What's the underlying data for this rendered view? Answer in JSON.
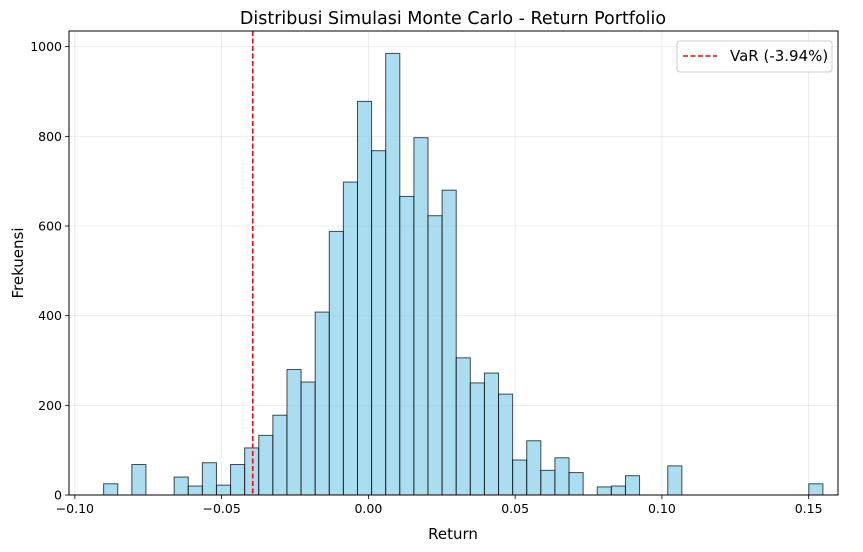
{
  "chart_data": {
    "type": "bar",
    "title": "Distribusi Simulasi Monte Carlo - Return Portfolio",
    "xlabel": "Return",
    "ylabel": "Frekuensi",
    "xlim": [
      -0.102,
      0.16
    ],
    "ylim": [
      0,
      1035
    ],
    "grid": true,
    "legend_position": "top-right",
    "bar_color": "#87CEEB",
    "edge_color": "#000000",
    "x_ticks": [
      {
        "value": -0.1,
        "label": "−0.10"
      },
      {
        "value": -0.05,
        "label": "−0.05"
      },
      {
        "value": 0.0,
        "label": "0.00"
      },
      {
        "value": 0.05,
        "label": "0.05"
      },
      {
        "value": 0.1,
        "label": "0.10"
      },
      {
        "value": 0.15,
        "label": "0.15"
      }
    ],
    "y_ticks": [
      {
        "value": 0,
        "label": "0"
      },
      {
        "value": 200,
        "label": "200"
      },
      {
        "value": 400,
        "label": "400"
      },
      {
        "value": 600,
        "label": "600"
      },
      {
        "value": 800,
        "label": "800"
      },
      {
        "value": 1000,
        "label": "1000"
      }
    ],
    "bin_start": -0.0902,
    "bin_width": 0.004805,
    "values": [
      25,
      0,
      68,
      0,
      0,
      40,
      20,
      72,
      22,
      68,
      105,
      133,
      178,
      280,
      252,
      408,
      588,
      698,
      878,
      768,
      985,
      666,
      797,
      623,
      680,
      306,
      250,
      272,
      225,
      78,
      121,
      55,
      83,
      50,
      0,
      18,
      20,
      43,
      0,
      0,
      65,
      0,
      0,
      0,
      0,
      0,
      0,
      0,
      0,
      0,
      25
    ],
    "vline": {
      "x": -0.0394,
      "color": "#FF0000",
      "label": "VaR (-3.94%)"
    }
  }
}
